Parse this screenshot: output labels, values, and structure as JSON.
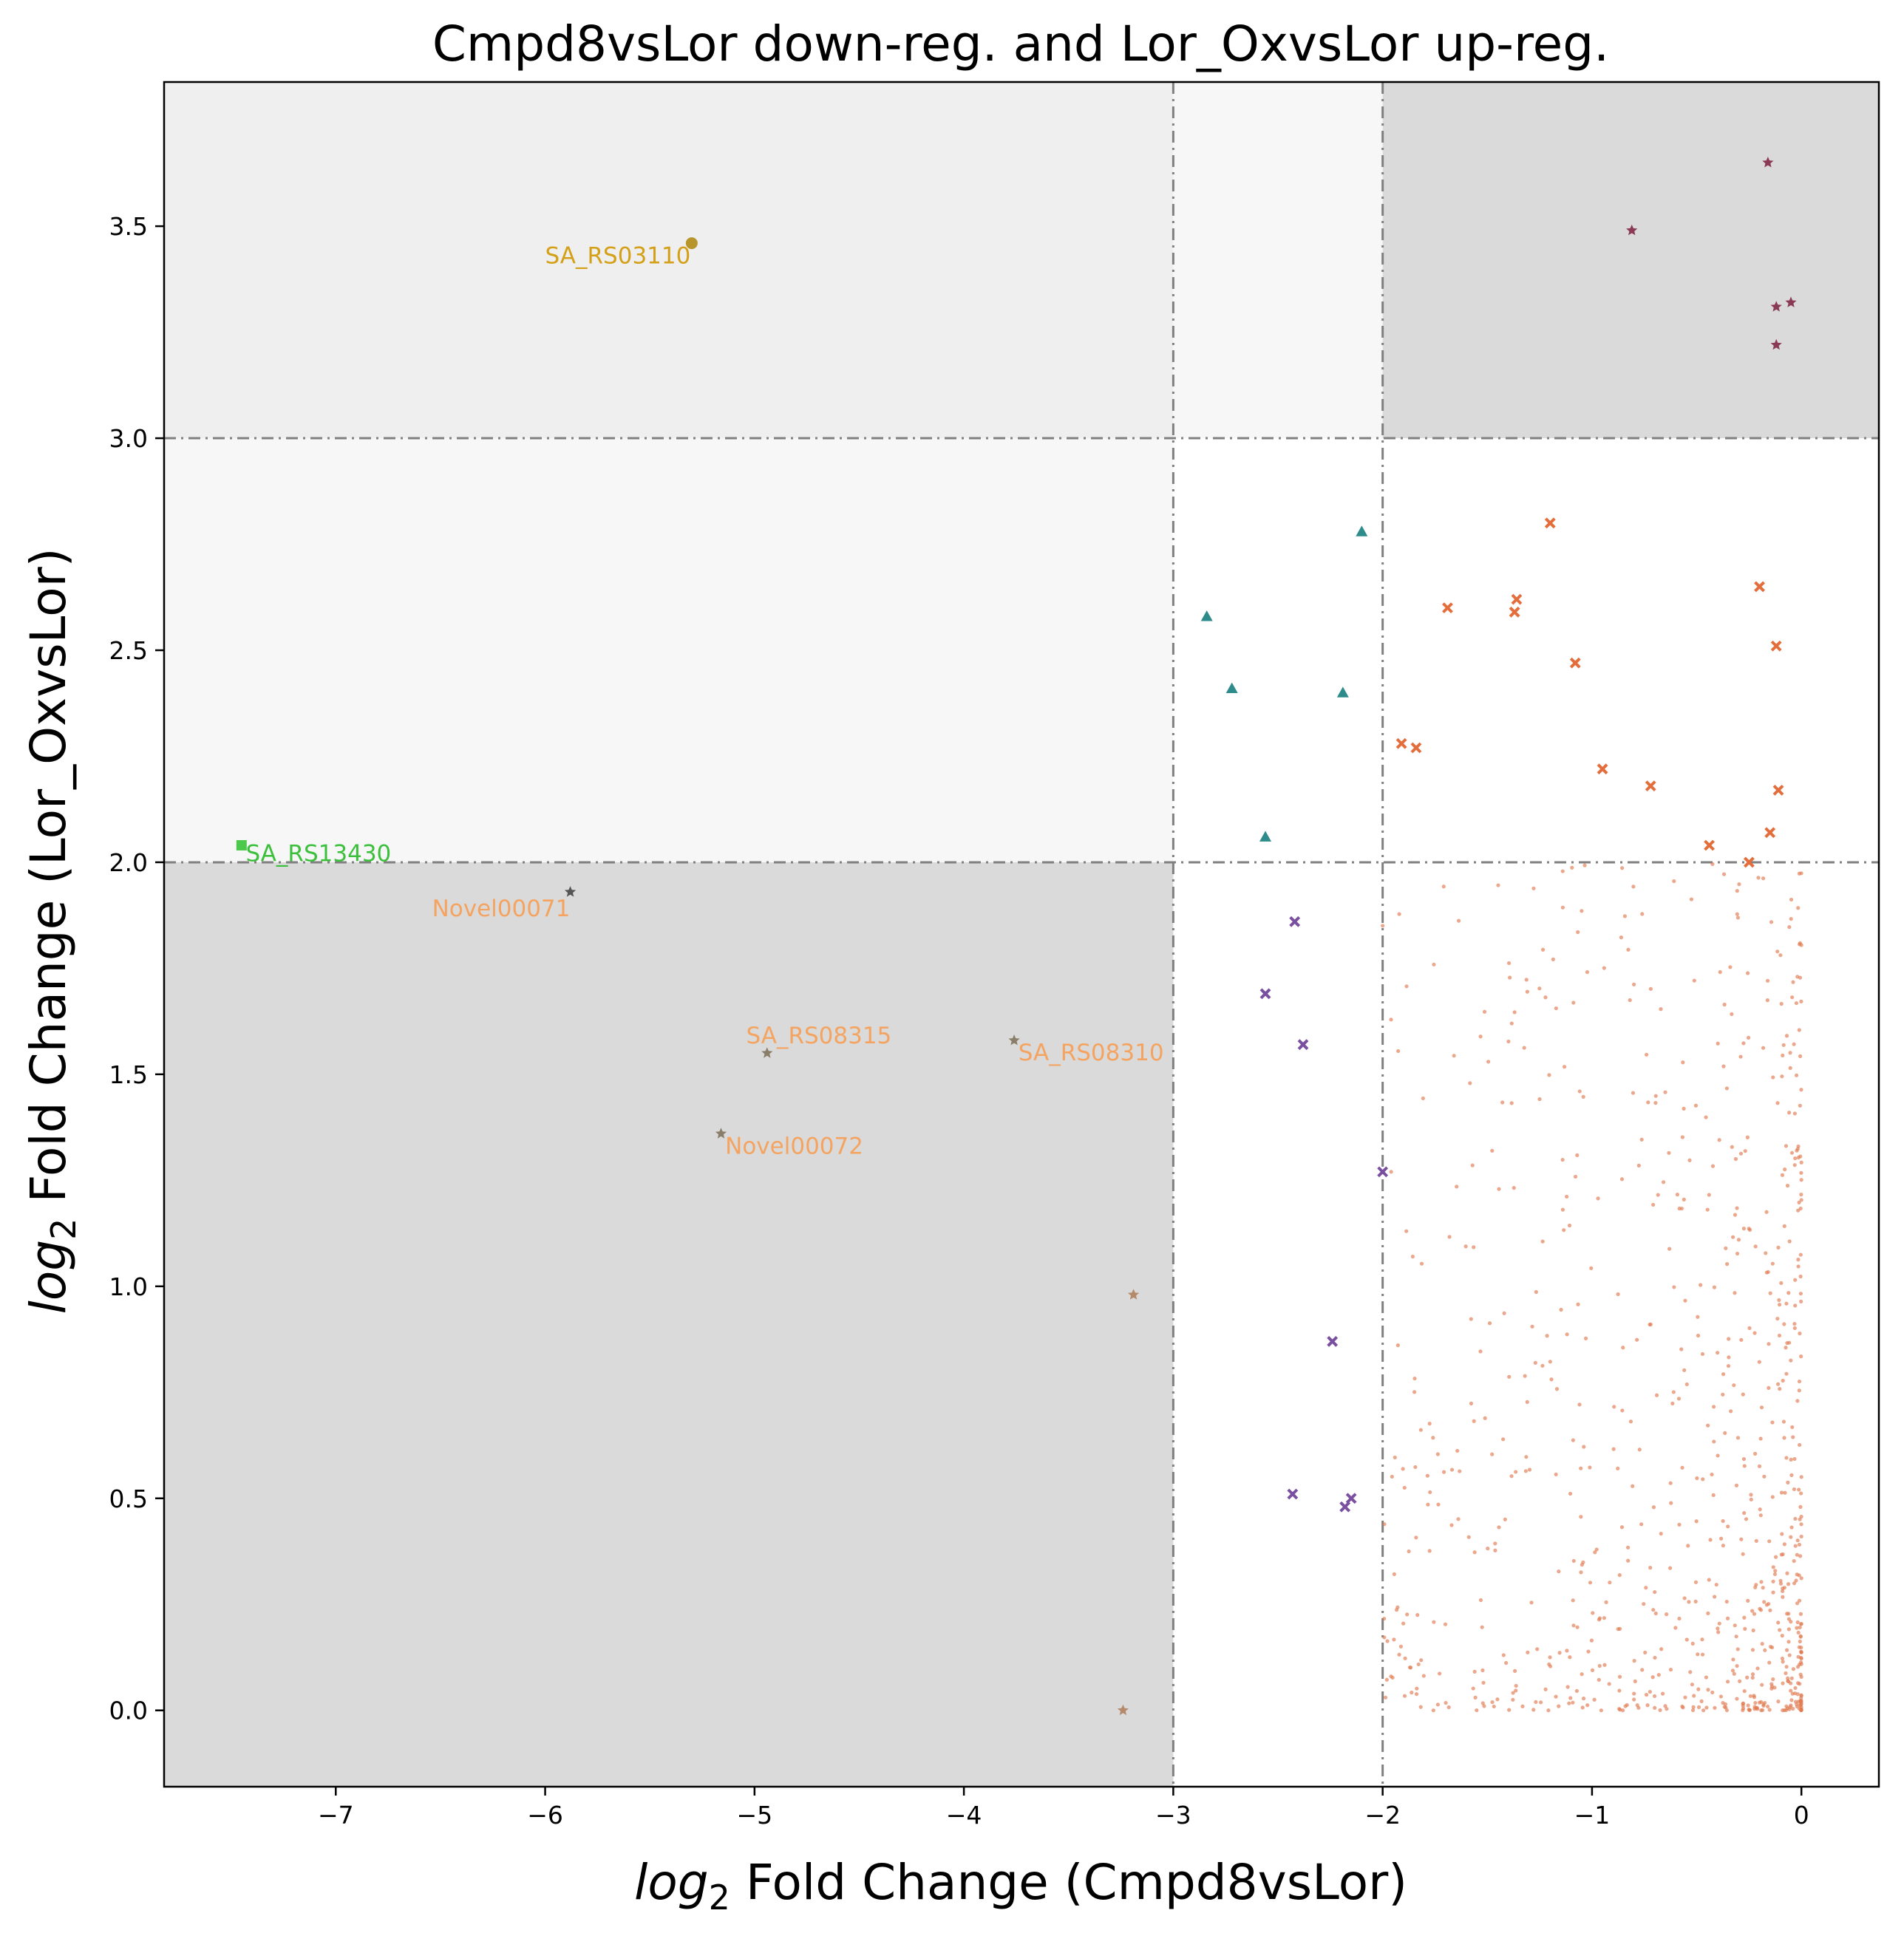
{
  "chart_data": {
    "type": "scatter",
    "title": "Cmpd8vsLor down-reg. and Lor_OxvsLor up-reg.",
    "xlabel": {
      "prefix": "log",
      "sub": "2",
      "rest": " Fold Change (Cmpd8vsLor)"
    },
    "ylabel": {
      "prefix": "log",
      "sub": "2",
      "rest": " Fold Change (Lor_OxvsLor)"
    },
    "xlim": [
      -7.82,
      0.37
    ],
    "ylim": [
      -0.18,
      3.84
    ],
    "x_ticks": [
      {
        "value": -7,
        "label": "−7"
      },
      {
        "value": -6,
        "label": "−6"
      },
      {
        "value": -5,
        "label": "−5"
      },
      {
        "value": -4,
        "label": "−4"
      },
      {
        "value": -3,
        "label": "−3"
      },
      {
        "value": -2,
        "label": "−2"
      },
      {
        "value": -1,
        "label": "−1"
      },
      {
        "value": 0,
        "label": "0"
      }
    ],
    "y_ticks": [
      {
        "value": 0.0,
        "label": "0.0"
      },
      {
        "value": 0.5,
        "label": "0.5"
      },
      {
        "value": 1.0,
        "label": "1.0"
      },
      {
        "value": 1.5,
        "label": "1.5"
      },
      {
        "value": 2.0,
        "label": "2.0"
      },
      {
        "value": 2.5,
        "label": "2.5"
      },
      {
        "value": 3.0,
        "label": "3.0"
      },
      {
        "value": 3.5,
        "label": "3.5"
      }
    ],
    "grid": false,
    "thresholds": {
      "x": [
        -3,
        -2
      ],
      "y": [
        2,
        3
      ]
    },
    "regions": [
      {
        "x": [
          -7.82,
          -3
        ],
        "y": [
          3,
          3.84
        ],
        "color": "#efefef"
      },
      {
        "x": [
          -3,
          -2
        ],
        "y": [
          3,
          3.84
        ],
        "color": "#f7f7f7"
      },
      {
        "x": [
          -2,
          0.37
        ],
        "y": [
          3,
          3.84
        ],
        "color": "#dadada"
      },
      {
        "x": [
          -7.82,
          -3
        ],
        "y": [
          2,
          3
        ],
        "color": "#f7f7f7"
      },
      {
        "x": [
          -7.82,
          -3
        ],
        "y": [
          -0.18,
          2
        ],
        "color": "#dadada"
      }
    ],
    "series": [
      {
        "marker": "star",
        "color": "#8b3a55",
        "points": [
          [
            -0.16,
            3.65
          ],
          [
            -0.81,
            3.49
          ],
          [
            -0.12,
            3.31
          ],
          [
            -0.05,
            3.32
          ],
          [
            -0.12,
            3.22
          ]
        ]
      },
      {
        "marker": "x",
        "color": "#e46d3c",
        "points": [
          [
            -1.2,
            2.8
          ],
          [
            -0.2,
            2.65
          ],
          [
            -1.36,
            2.62
          ],
          [
            -1.69,
            2.6
          ],
          [
            -1.37,
            2.59
          ],
          [
            -0.12,
            2.51
          ],
          [
            -1.08,
            2.47
          ],
          [
            -1.91,
            2.28
          ],
          [
            -1.84,
            2.27
          ],
          [
            -0.95,
            2.22
          ],
          [
            -0.72,
            2.18
          ],
          [
            -0.11,
            2.17
          ],
          [
            -0.15,
            2.07
          ],
          [
            -0.44,
            2.04
          ],
          [
            -0.25,
            2.0
          ]
        ]
      },
      {
        "marker": "triangle",
        "color": "#2e8b8b",
        "points": [
          [
            -2.1,
            2.78
          ],
          [
            -2.84,
            2.58
          ],
          [
            -2.72,
            2.41
          ],
          [
            -2.19,
            2.4
          ],
          [
            -2.56,
            2.06
          ]
        ]
      },
      {
        "marker": "x",
        "color": "#7b4fa0",
        "points": [
          [
            -2.42,
            1.86
          ],
          [
            -2.56,
            1.69
          ],
          [
            -2.38,
            1.57
          ],
          [
            -2.0,
            1.27
          ],
          [
            -2.24,
            0.87
          ],
          [
            -2.43,
            0.51
          ],
          [
            -2.18,
            0.48
          ],
          [
            -2.15,
            0.5
          ]
        ]
      },
      {
        "marker": "star",
        "color": "#b58a6a",
        "points": [
          [
            -3.19,
            0.98
          ],
          [
            -3.24,
            0.0
          ]
        ]
      },
      {
        "marker": "dot",
        "color": "#e07a50",
        "generated": true,
        "count": 800,
        "x_range": [
          -2,
          0
        ],
        "y_range": [
          0,
          2
        ]
      }
    ],
    "annotations": [
      {
        "label": "SA_RS03110",
        "x": -5.3,
        "y": 3.46,
        "color": "#d4a017",
        "marker": "circle",
        "marker_color": "#b8952a",
        "text_x": -6.0,
        "text_y": 3.43
      },
      {
        "label": "SA_RS13430",
        "x": -7.45,
        "y": 2.04,
        "color": "#3cc03c",
        "marker": "square",
        "marker_color": "#4cc94c",
        "text_x": -7.43,
        "text_y": 2.02
      },
      {
        "label": "Novel00071",
        "x": -5.88,
        "y": 1.93,
        "color": "#f4a460",
        "marker": "star",
        "marker_color": "#555555",
        "text_x": -6.54,
        "text_y": 1.89
      },
      {
        "label": "SA_RS08315",
        "x": -4.94,
        "y": 1.55,
        "color": "#f4a460",
        "marker": "star",
        "marker_color": "#8a7d6a",
        "text_x": -5.04,
        "text_y": 1.59
      },
      {
        "label": "SA_RS08310",
        "x": -3.76,
        "y": 1.58,
        "color": "#f4a460",
        "marker": "star",
        "marker_color": "#8a7d6a",
        "text_x": -3.74,
        "text_y": 1.55
      },
      {
        "label": "Novel00072",
        "x": -5.16,
        "y": 1.36,
        "color": "#f4a460",
        "marker": "star",
        "marker_color": "#8a7d6a",
        "text_x": -5.14,
        "text_y": 1.33
      }
    ]
  }
}
